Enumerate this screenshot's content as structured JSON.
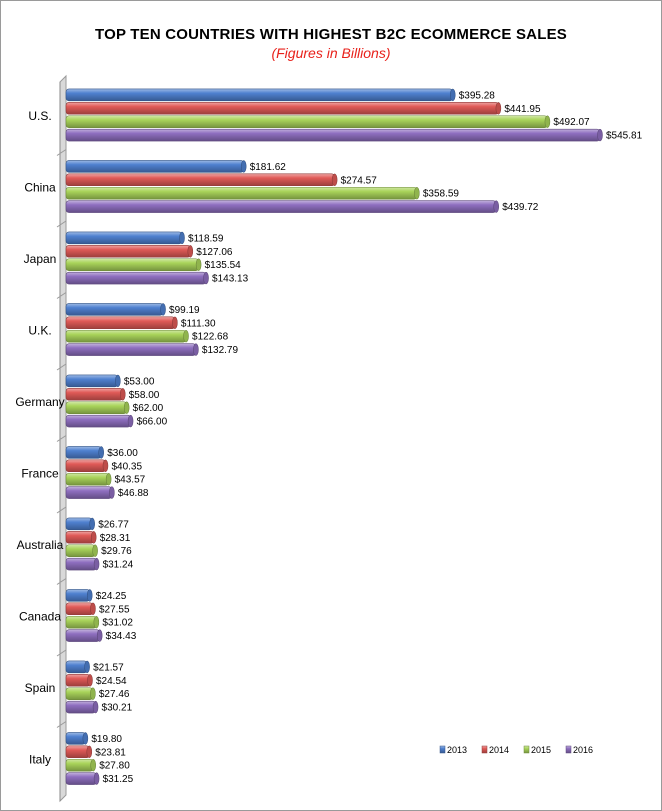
{
  "chart_data": {
    "type": "bar",
    "orientation": "horizontal",
    "title": "TOP TEN COUNTRIES WITH HIGHEST B2C ECOMMERCE SALES",
    "subtitle": "(Figures in Billions)",
    "categories": [
      "U.S.",
      "China",
      "Japan",
      "U.K.",
      "Germany",
      "France",
      "Australia",
      "Canada",
      "Spain",
      "Italy"
    ],
    "series": [
      {
        "name": "2013",
        "color": "#4f81d0",
        "values": [
          395.28,
          181.62,
          118.59,
          99.19,
          53.0,
          36.0,
          26.77,
          24.25,
          21.57,
          19.8
        ],
        "labels": [
          "$395.28",
          "$181.62",
          "$118.59",
          "$99.19",
          "$53.00",
          "$36.00",
          "$26.77",
          "$24.25",
          "$21.57",
          "$19.80"
        ]
      },
      {
        "name": "2014",
        "color": "#e05a57",
        "values": [
          441.95,
          274.57,
          127.06,
          111.3,
          58.0,
          40.35,
          28.31,
          27.55,
          24.54,
          23.81
        ],
        "labels": [
          "$441.95",
          "$274.57",
          "$127.06",
          "$111.30",
          "$58.00",
          "$40.35",
          "$28.31",
          "$27.55",
          "$24.54",
          "$23.81"
        ]
      },
      {
        "name": "2015",
        "color": "#a9d45a",
        "values": [
          492.07,
          358.59,
          135.54,
          122.68,
          62.0,
          43.57,
          29.76,
          31.02,
          27.46,
          27.8
        ],
        "labels": [
          "$492.07",
          "$358.59",
          "$135.54",
          "$122.68",
          "$62.00",
          "$43.57",
          "$29.76",
          "$31.02",
          "$27.46",
          "$27.80"
        ]
      },
      {
        "name": "2016",
        "color": "#8f6fc0",
        "values": [
          545.81,
          439.72,
          143.13,
          132.79,
          66.0,
          46.88,
          31.24,
          34.43,
          30.21,
          31.25
        ],
        "labels": [
          "$545.81",
          "$439.72",
          "$143.13",
          "$132.79",
          "$66.00",
          "$46.88",
          "$31.24",
          "$34.43",
          "$30.21",
          "$31.25"
        ]
      }
    ],
    "xlim": [
      0,
      550
    ],
    "grid": false,
    "legend_position": "bottom-right"
  }
}
